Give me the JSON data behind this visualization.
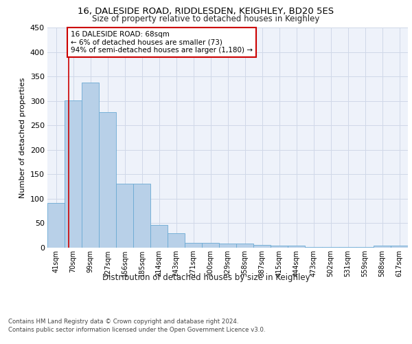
{
  "title_line1": "16, DALESIDE ROAD, RIDDLESDEN, KEIGHLEY, BD20 5ES",
  "title_line2": "Size of property relative to detached houses in Keighley",
  "xlabel": "Distribution of detached houses by size in Keighley",
  "ylabel": "Number of detached properties",
  "categories": [
    "41sqm",
    "70sqm",
    "99sqm",
    "127sqm",
    "156sqm",
    "185sqm",
    "214sqm",
    "243sqm",
    "271sqm",
    "300sqm",
    "329sqm",
    "358sqm",
    "387sqm",
    "415sqm",
    "444sqm",
    "473sqm",
    "502sqm",
    "531sqm",
    "559sqm",
    "588sqm",
    "617sqm"
  ],
  "values": [
    92,
    301,
    338,
    277,
    131,
    131,
    46,
    30,
    10,
    10,
    8,
    8,
    5,
    4,
    4,
    2,
    1,
    1,
    1,
    4,
    4
  ],
  "bar_color": "#b8d0e8",
  "bar_edge_color": "#6aaad4",
  "annotation_line1": "16 DALESIDE ROAD: 68sqm",
  "annotation_line2": "← 6% of detached houses are smaller (73)",
  "annotation_line3": "94% of semi-detached houses are larger (1,180) →",
  "annotation_box_color": "#ffffff",
  "annotation_box_edge_color": "#cc0000",
  "vline_color": "#cc0000",
  "ylim": [
    0,
    450
  ],
  "yticks": [
    0,
    50,
    100,
    150,
    200,
    250,
    300,
    350,
    400,
    450
  ],
  "grid_color": "#d0d8e8",
  "bg_color": "#eef2fa",
  "footer_line1": "Contains HM Land Registry data © Crown copyright and database right 2024.",
  "footer_line2": "Contains public sector information licensed under the Open Government Licence v3.0."
}
